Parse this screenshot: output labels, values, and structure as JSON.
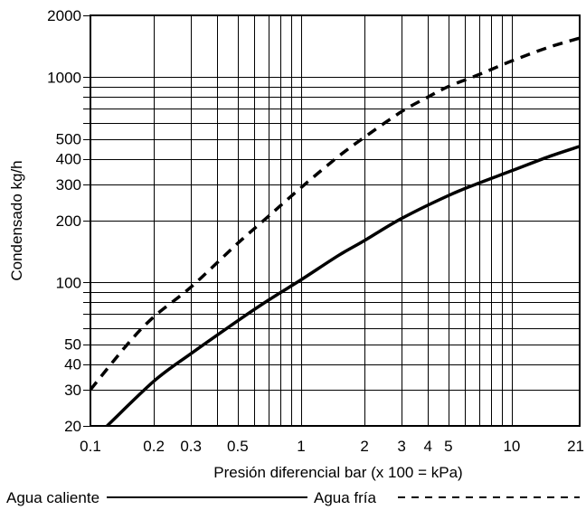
{
  "chart_data": {
    "type": "line",
    "title": "",
    "xlabel": "Presión diferencial bar (x 100 = kPa)",
    "ylabel": "Condensado  kg/h",
    "x_scale": "log",
    "y_scale": "log",
    "xlim": [
      0.1,
      21
    ],
    "ylim": [
      20,
      2000
    ],
    "grid": true,
    "x_grid_values": [
      0.1,
      0.2,
      0.3,
      0.4,
      0.5,
      0.6,
      0.7,
      0.8,
      0.9,
      1,
      2,
      3,
      4,
      5,
      6,
      7,
      8,
      9,
      10,
      21
    ],
    "y_grid_values": [
      20,
      30,
      40,
      50,
      60,
      70,
      80,
      90,
      100,
      200,
      300,
      400,
      500,
      600,
      700,
      800,
      900,
      1000,
      2000
    ],
    "x_tick_labels": [
      {
        "value": 0.1,
        "label": "0.1"
      },
      {
        "value": 0.2,
        "label": "0.2"
      },
      {
        "value": 0.3,
        "label": "0.3"
      },
      {
        "value": 0.5,
        "label": "0.5"
      },
      {
        "value": 1,
        "label": "1"
      },
      {
        "value": 2,
        "label": "2"
      },
      {
        "value": 3,
        "label": "3"
      },
      {
        "value": 4,
        "label": "4"
      },
      {
        "value": 5,
        "label": "5"
      },
      {
        "value": 10,
        "label": "10"
      },
      {
        "value": 21,
        "label": "21"
      }
    ],
    "y_tick_labels": [
      {
        "value": 20,
        "label": "20"
      },
      {
        "value": 30,
        "label": "30"
      },
      {
        "value": 40,
        "label": "40"
      },
      {
        "value": 50,
        "label": "50"
      },
      {
        "value": 100,
        "label": "100"
      },
      {
        "value": 200,
        "label": "200"
      },
      {
        "value": 300,
        "label": "300"
      },
      {
        "value": 400,
        "label": "400"
      },
      {
        "value": 500,
        "label": "500"
      },
      {
        "value": 1000,
        "label": "1000"
      },
      {
        "value": 2000,
        "label": "2000"
      }
    ],
    "series": [
      {
        "name": "Agua caliente",
        "style": "solid",
        "color": "#000000",
        "x": [
          0.12,
          0.2,
          0.3,
          0.5,
          0.7,
          1,
          1.5,
          2,
          3,
          5,
          7,
          10,
          15,
          21
        ],
        "y": [
          20,
          33,
          45,
          65,
          82,
          103,
          135,
          160,
          205,
          265,
          305,
          350,
          410,
          460
        ]
      },
      {
        "name": "Agua fría",
        "style": "dashed",
        "color": "#000000",
        "x": [
          0.1,
          0.15,
          0.2,
          0.3,
          0.5,
          0.7,
          1,
          1.5,
          2,
          3,
          4,
          5,
          7,
          10,
          15,
          21
        ],
        "y": [
          30,
          50,
          68,
          95,
          155,
          210,
          290,
          410,
          510,
          680,
          800,
          900,
          1030,
          1200,
          1400,
          1550
        ]
      }
    ],
    "legend": {
      "placement": "bottom",
      "items": [
        {
          "label": "Agua caliente",
          "style": "solid"
        },
        {
          "label": "Agua fría",
          "style": "dashed"
        }
      ]
    }
  }
}
